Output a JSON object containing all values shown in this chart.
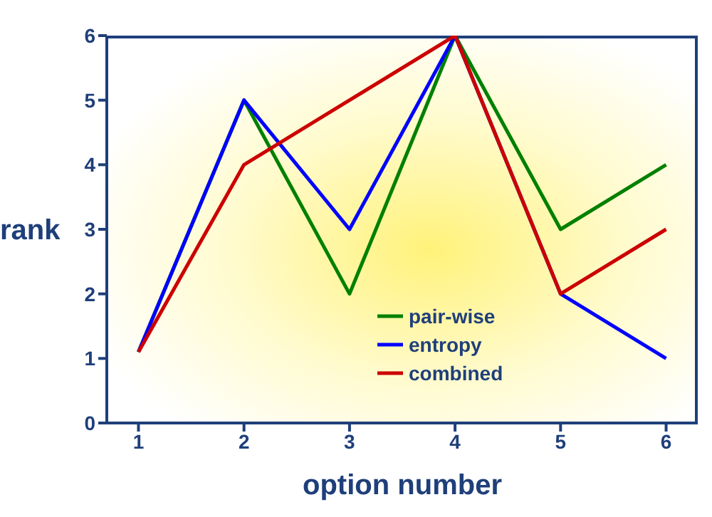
{
  "chart_data": {
    "type": "line",
    "xlabel": "option number",
    "ylabel": "rank",
    "x": [
      1,
      2,
      3,
      4,
      5,
      6
    ],
    "series": [
      {
        "name": "pair-wise",
        "color": "#008000",
        "values": [
          1.1,
          5,
          2,
          6,
          3,
          4
        ]
      },
      {
        "name": "entropy",
        "color": "#0000ff",
        "values": [
          1.1,
          5,
          3,
          6,
          2,
          1
        ]
      },
      {
        "name": "combined",
        "color": "#cc0000",
        "values": [
          1.1,
          4,
          5,
          6,
          2,
          3
        ]
      }
    ],
    "xlim": [
      0.7,
      6.3
    ],
    "xticks": [
      1,
      2,
      3,
      4,
      5,
      6
    ],
    "ylim": [
      0,
      6
    ],
    "yticks": [
      0,
      1,
      2,
      3,
      4,
      5,
      6
    ],
    "grid": false,
    "legend": "bottom right",
    "marker": "none",
    "line_style": "solid"
  }
}
